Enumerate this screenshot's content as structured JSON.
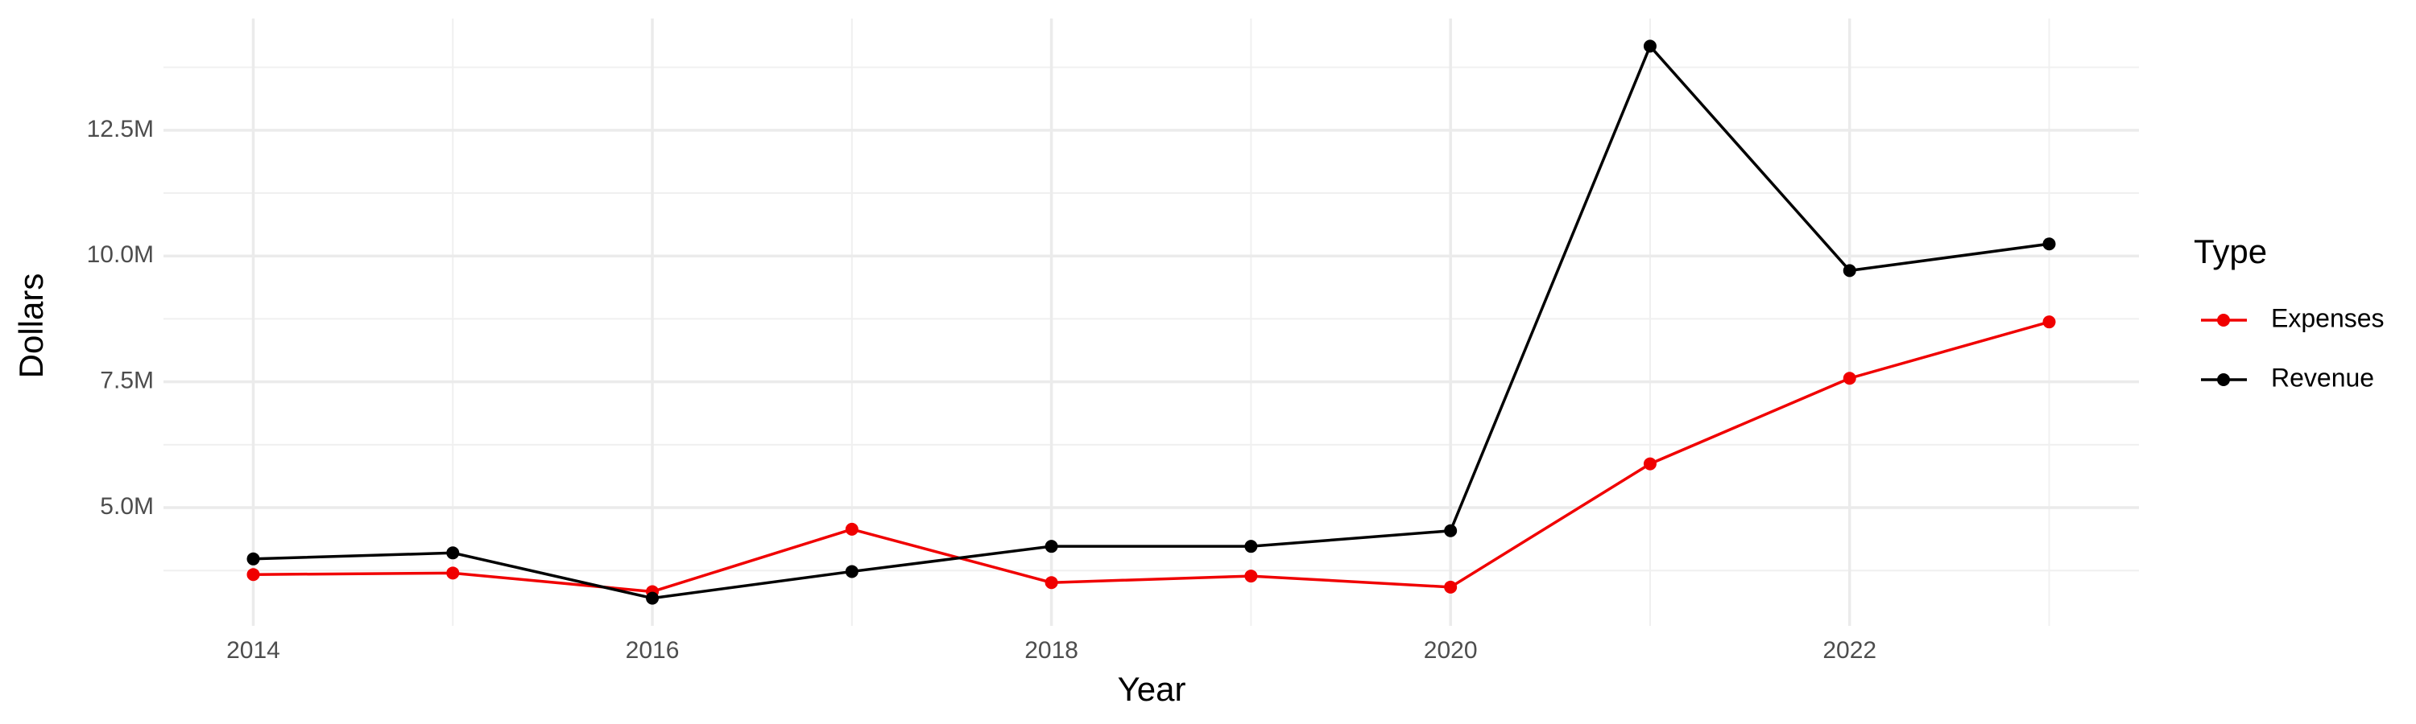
{
  "chart_data": {
    "type": "line",
    "x_label": "Year",
    "y_label": "Dollars",
    "legend_title": "Type",
    "legend_position": "right",
    "grid": true,
    "minor_grid": true,
    "x": [
      2014,
      2015,
      2016,
      2017,
      2018,
      2019,
      2020,
      2021,
      2022,
      2023
    ],
    "series": [
      {
        "name": "Expenses",
        "color": "#f00000",
        "values": [
          3670000,
          3700000,
          3330000,
          4570000,
          3510000,
          3640000,
          3420000,
          5870000,
          7570000,
          8690000
        ]
      },
      {
        "name": "Revenue",
        "color": "#000000",
        "values": [
          3980000,
          4100000,
          3200000,
          3730000,
          4230000,
          4230000,
          4540000,
          14170000,
          9710000,
          10240000
        ]
      }
    ],
    "xlim": [
      2013.55,
      2023.45
    ],
    "xticks": [
      2014,
      2016,
      2018,
      2020,
      2022
    ],
    "ylim": [
      2650000,
      14720000
    ],
    "yticks": [
      {
        "value": 5000000,
        "label": "5.0M"
      },
      {
        "value": 7500000,
        "label": "7.5M"
      },
      {
        "value": 10000000,
        "label": "10.0M"
      },
      {
        "value": 12500000,
        "label": "12.5M"
      }
    ]
  }
}
